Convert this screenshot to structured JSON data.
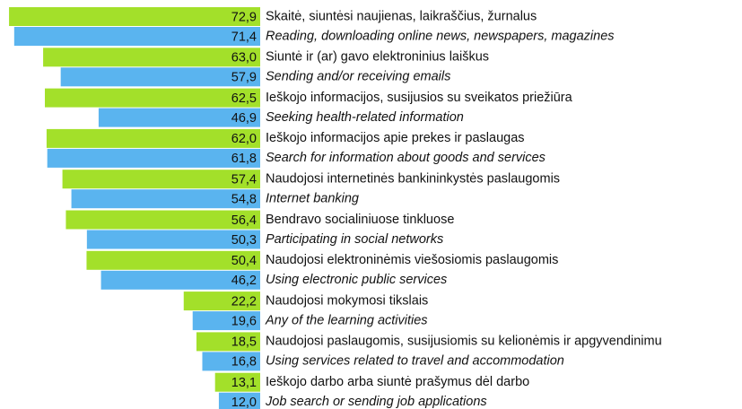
{
  "chart_data": {
    "type": "bar",
    "orientation": "horizontal",
    "categories": [
      "Skaitė, siuntėsi naujienas, laikraščius, žurnalus",
      "Siuntė ir (ar) gavo elektroninius laiškus",
      "Ieškojo informacijos, susijusios su sveikatos priežiūra",
      "Ieškojo informacijos apie prekes ir paslaugas",
      "Naudojosi internetinės bankininkystės paslaugomis",
      "Bendravo socialiniuose tinkluose",
      "Naudojosi elektroninėmis viešosiomis paslaugomis",
      "Naudojosi mokymosi tikslais",
      "Naudojosi paslaugomis, susijusiomis su kelionėmis ir apgyvendinimu",
      "Ieškojo darbo arba siuntė prašymus dėl darbo"
    ],
    "categories_en": [
      "Reading, downloading online news, newspapers, magazines",
      "Sending and/or receiving emails",
      "Seeking health-related information",
      "Search for information about goods and services",
      "Internet banking",
      "Participating in social networks",
      "Using electronic public services",
      "Any of the learning activities",
      "Using services related to travel and accommodation",
      "Job search or sending job applications"
    ],
    "series": [
      {
        "color": "#a3e02a",
        "values": [
          72.9,
          63.0,
          62.5,
          62.0,
          57.4,
          56.4,
          50.4,
          22.2,
          18.5,
          13.1
        ],
        "value_labels": [
          "72,9",
          "63,0",
          "62,5",
          "62,0",
          "57,4",
          "56,4",
          "50,4",
          "22,2",
          "18,5",
          "13,1"
        ]
      },
      {
        "color": "#5ab4ef",
        "values": [
          71.4,
          57.9,
          46.9,
          61.8,
          54.8,
          50.3,
          46.2,
          19.6,
          16.8,
          12.0
        ],
        "value_labels": [
          "71,4",
          "57,9",
          "46,9",
          "61,8",
          "54,8",
          "50,3",
          "46,2",
          "19,6",
          "16,8",
          "12,0"
        ]
      }
    ],
    "xlim": [
      0,
      75
    ]
  }
}
